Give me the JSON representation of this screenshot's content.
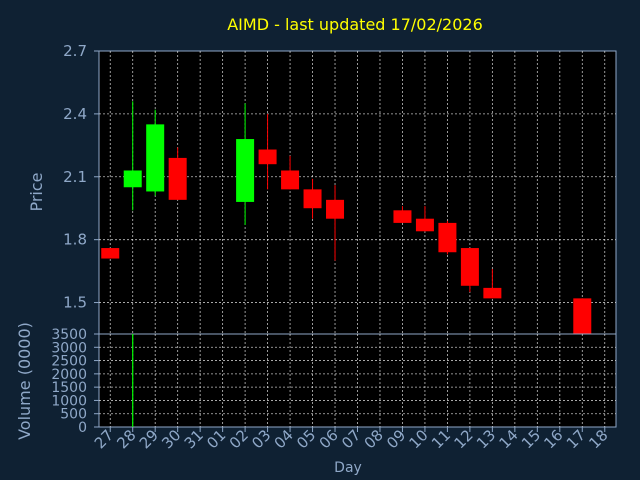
{
  "title": "AIMD - last updated 17/02/2026",
  "colors": {
    "background": "#0f2133",
    "plot_area": "#000000",
    "title": "#ffff00",
    "axis_text": "#8fa8c8",
    "grid": "#ffffff",
    "up": "#00ff00",
    "down": "#ff0000"
  },
  "chart_data": [
    {
      "type": "candlestick",
      "title": "AIMD - last updated 17/02/2026",
      "ylabel": "Price",
      "ylim": [
        1.35,
        2.7
      ],
      "yticks": [
        "1.5",
        "1.8",
        "2.1",
        "2.4",
        "2.7"
      ],
      "categories": [
        "27",
        "28",
        "29",
        "30",
        "31",
        "01",
        "02",
        "03",
        "04",
        "05",
        "06",
        "07",
        "08",
        "09",
        "10",
        "11",
        "12",
        "13",
        "14",
        "15",
        "16",
        "17",
        "18"
      ],
      "grid": true,
      "candles": [
        {
          "day": "27",
          "open": 1.76,
          "high": 1.76,
          "low": 1.71,
          "close": 1.71
        },
        {
          "day": "28",
          "open": 2.05,
          "high": 2.46,
          "low": 1.94,
          "close": 2.13
        },
        {
          "day": "29",
          "open": 2.03,
          "high": 2.42,
          "low": 2.01,
          "close": 2.35
        },
        {
          "day": "30",
          "open": 2.19,
          "high": 2.24,
          "low": 1.99,
          "close": 1.99
        },
        {
          "day": "02",
          "open": 1.98,
          "high": 2.45,
          "low": 1.87,
          "close": 2.28
        },
        {
          "day": "03",
          "open": 2.23,
          "high": 2.4,
          "low": 2.04,
          "close": 2.16
        },
        {
          "day": "04",
          "open": 2.13,
          "high": 2.2,
          "low": 2.04,
          "close": 2.04
        },
        {
          "day": "05",
          "open": 2.04,
          "high": 2.09,
          "low": 1.9,
          "close": 1.95
        },
        {
          "day": "06",
          "open": 1.99,
          "high": 2.06,
          "low": 1.7,
          "close": 1.9
        },
        {
          "day": "09",
          "open": 1.94,
          "high": 1.96,
          "low": 1.88,
          "close": 1.88
        },
        {
          "day": "10",
          "open": 1.9,
          "high": 1.96,
          "low": 1.84,
          "close": 1.84
        },
        {
          "day": "11",
          "open": 1.88,
          "high": 1.89,
          "low": 1.73,
          "close": 1.74
        },
        {
          "day": "12",
          "open": 1.76,
          "high": 1.76,
          "low": 1.55,
          "close": 1.58
        },
        {
          "day": "13",
          "open": 1.57,
          "high": 1.66,
          "low": 1.52,
          "close": 1.52
        },
        {
          "day": "17",
          "open": 1.52,
          "high": 1.52,
          "low": 1.32,
          "close": 1.33
        }
      ]
    },
    {
      "type": "bar",
      "ylabel": "Volume (0000)",
      "xlabel": "Day",
      "ylim": [
        0,
        3500
      ],
      "yticks": [
        "0",
        "500",
        "1000",
        "1500",
        "2000",
        "2500",
        "3000",
        "3500"
      ],
      "categories": [
        "27",
        "28",
        "29",
        "30",
        "31",
        "01",
        "02",
        "03",
        "04",
        "05",
        "06",
        "07",
        "08",
        "09",
        "10",
        "11",
        "12",
        "13",
        "14",
        "15",
        "16",
        "17",
        "18"
      ],
      "grid": true,
      "bars": [
        {
          "day": "28",
          "value": 3500,
          "color": "up"
        }
      ]
    }
  ]
}
